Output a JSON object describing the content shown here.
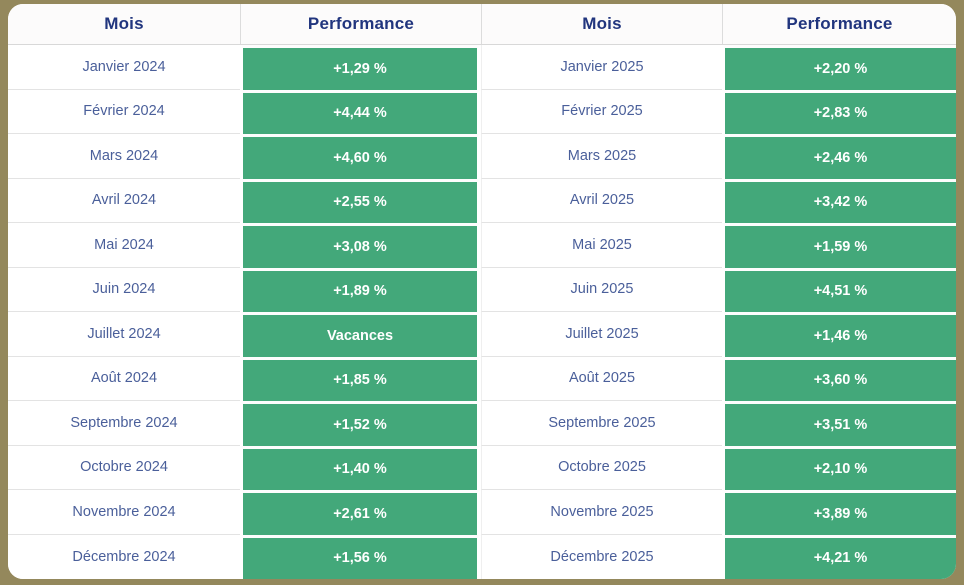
{
  "chart_data": {
    "type": "table",
    "columns": [
      "Mois",
      "Performance",
      "Mois",
      "Performance"
    ],
    "rows": [
      [
        "Janvier 2024",
        "+1,29 %",
        "Janvier 2025",
        "+2,20 %"
      ],
      [
        "Février 2024",
        "+4,44 %",
        "Février 2025",
        "+2,83 %"
      ],
      [
        "Mars 2024",
        "+4,60 %",
        "Mars 2025",
        "+2,46 %"
      ],
      [
        "Avril 2024",
        "+2,55 %",
        "Avril 2025",
        "+3,42 %"
      ],
      [
        "Mai 2024",
        "+3,08 %",
        "Mai 2025",
        "+1,59 %"
      ],
      [
        "Juin 2024",
        "+1,89 %",
        "Juin 2025",
        "+4,51 %"
      ],
      [
        "Juillet 2024",
        "Vacances",
        "Juillet 2025",
        "+1,46 %"
      ],
      [
        "Août 2024",
        "+1,85 %",
        "Août 2025",
        "+3,60 %"
      ],
      [
        "Septembre 2024",
        "+1,52 %",
        "Septembre 2025",
        "+3,51 %"
      ],
      [
        "Octobre 2024",
        "+1,40 %",
        "Octobre 2025",
        "+2,10 %"
      ],
      [
        "Novembre 2024",
        "+2,61 %",
        "Novembre 2025",
        "+3,89 %"
      ],
      [
        "Décembre 2024",
        "+1,56 %",
        "Décembre 2025",
        "+4,21 %"
      ]
    ],
    "title": "",
    "layout_hints": {
      "left_table_year": "2024",
      "right_table_year": "2025",
      "value_style": "green cells, white bold text, French comma decimals"
    }
  },
  "colors": {
    "frame": "#94885c",
    "green": "#43a87a",
    "header_text": "#21357e",
    "month_text": "#4a5f9a"
  }
}
